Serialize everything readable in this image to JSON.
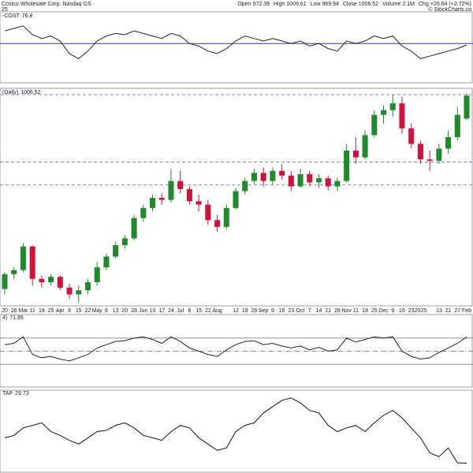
{
  "header": {
    "title": "Costco Wholesale Corp.",
    "exchange": "Nasdaq GS",
    "date": "25",
    "source": "© StockCharts.co",
    "stats": [
      {
        "label": "Open"
      },
      {
        "label": "High"
      },
      {
        "label": "Low"
      },
      {
        "label": "Close"
      },
      {
        "label": "Volume",
        "value": "2.1M"
      },
      {
        "label": "Chg",
        "value": "+26.64 (+2.72%)"
      }
    ]
  },
  "chart_data": [
    {
      "type": "line",
      "name": "-COST",
      "color": "#222222",
      "hline": 78,
      "hline_color": "#3333aa",
      "ylim": [
        50,
        100
      ],
      "values": [
        88,
        90,
        92,
        85,
        82,
        84,
        80,
        70,
        66,
        72,
        80,
        84,
        86,
        85,
        88,
        86,
        84,
        82,
        86,
        84,
        78,
        76,
        72,
        70,
        74,
        80,
        84,
        82,
        80,
        82,
        80,
        78,
        80,
        76,
        78,
        74,
        72,
        80,
        78,
        80,
        84,
        82,
        84,
        76,
        72,
        66,
        68,
        70,
        72,
        74,
        76.8
      ]
    },
    {
      "type": "candlestick",
      "name": "(Daily)",
      "up_color": "#1f8a2a",
      "down_color": "#d3123c",
      "ylim": [
        695,
        1015
      ],
      "levels": [
        1008,
        908,
        874
      ],
      "level_color": "#5555dd",
      "x": [
        "20",
        "26",
        "Mar",
        "11",
        "18",
        "25",
        "Apr",
        "8",
        "15",
        "22",
        "May",
        "6",
        "13",
        "20",
        "28",
        "Jun",
        "10",
        "17",
        "24",
        "Jul",
        "8",
        "15",
        "22",
        "Aug",
        null,
        "12",
        "19",
        "26",
        "Sep",
        "9",
        "16",
        "23",
        "Oct",
        "7",
        "14",
        "21",
        "28",
        "Nov",
        "11",
        "18",
        "25",
        "Dec",
        "9",
        "16",
        "23",
        "2025",
        null,
        "13",
        "21",
        "27",
        "Feb"
      ],
      "open": [
        720,
        742,
        748,
        783,
        735,
        730,
        738,
        722,
        712,
        718,
        730,
        752,
        768,
        785,
        795,
        825,
        840,
        855,
        852,
        880,
        868,
        850,
        845,
        822,
        812,
        840,
        865,
        880,
        892,
        880,
        895,
        888,
        872,
        890,
        878,
        884,
        872,
        880,
        925,
        915,
        948,
        978,
        985,
        995,
        958,
        935,
        912,
        910,
        928,
        945,
        972.39
      ],
      "high": [
        745,
        752,
        788,
        785,
        740,
        742,
        740,
        728,
        725,
        735,
        760,
        772,
        790,
        800,
        830,
        845,
        860,
        862,
        898,
        895,
        872,
        860,
        852,
        830,
        845,
        870,
        885,
        898,
        900,
        900,
        905,
        895,
        898,
        895,
        890,
        888,
        885,
        935,
        945,
        955,
        985,
        992,
        1008,
        1005,
        965,
        940,
        925,
        935,
        955,
        990,
        1009.61
      ],
      "low": [
        712,
        735,
        745,
        725,
        722,
        725,
        718,
        705,
        700,
        712,
        725,
        748,
        765,
        780,
        792,
        820,
        835,
        845,
        848,
        862,
        845,
        835,
        815,
        805,
        808,
        838,
        860,
        875,
        872,
        875,
        882,
        865,
        870,
        872,
        870,
        866,
        865,
        878,
        905,
        912,
        945,
        965,
        975,
        950,
        928,
        905,
        895,
        905,
        920,
        940,
        969.94
      ],
      "close": [
        742,
        748,
        783,
        735,
        730,
        738,
        722,
        712,
        718,
        730,
        752,
        768,
        785,
        795,
        825,
        840,
        855,
        852,
        880,
        868,
        850,
        845,
        822,
        812,
        840,
        865,
        880,
        892,
        880,
        895,
        888,
        872,
        890,
        878,
        884,
        872,
        880,
        925,
        915,
        948,
        978,
        985,
        995,
        958,
        935,
        912,
        910,
        928,
        945,
        978,
        1006.52
      ]
    },
    {
      "type": "line",
      "name": "4)",
      "color": "#222222",
      "fill_color": "#c8b48c",
      "hlines": [
        70,
        50,
        30
      ],
      "ylim": [
        0,
        100
      ],
      "values": [
        60,
        62,
        72,
        45,
        40,
        42,
        38,
        35,
        40,
        45,
        55,
        60,
        65,
        66,
        70,
        72,
        68,
        62,
        72,
        65,
        55,
        50,
        45,
        42,
        52,
        60,
        65,
        66,
        60,
        62,
        58,
        55,
        58,
        52,
        56,
        50,
        52,
        70,
        64,
        68,
        72,
        70,
        72,
        50,
        42,
        38,
        40,
        48,
        55,
        62,
        71.95
      ]
    },
    {
      "type": "line",
      "name": "TAP",
      "color": "#111111",
      "ylim": [
        25,
        85
      ],
      "values": [
        50,
        52,
        58,
        60,
        62,
        55,
        52,
        48,
        45,
        50,
        55,
        56,
        60,
        62,
        58,
        52,
        50,
        48,
        55,
        60,
        58,
        50,
        45,
        40,
        42,
        55,
        60,
        62,
        70,
        75,
        80,
        82,
        78,
        72,
        70,
        60,
        55,
        58,
        60,
        55,
        62,
        68,
        72,
        66,
        58,
        50,
        38,
        35,
        42,
        30,
        29.73
      ]
    }
  ]
}
